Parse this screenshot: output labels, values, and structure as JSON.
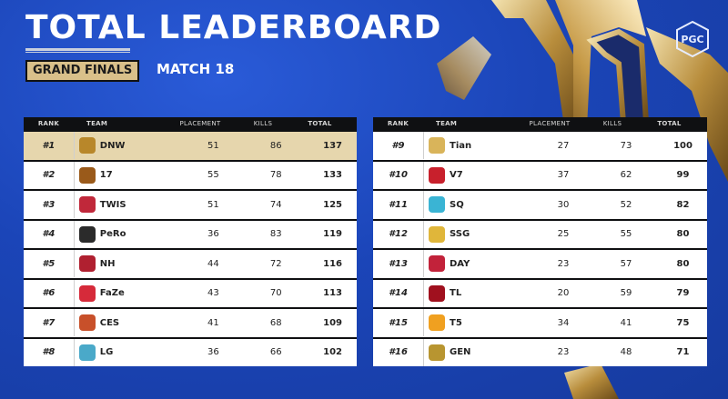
{
  "header": {
    "title": "TOTAL LEADERBOARD",
    "stage": "GRAND FINALS",
    "match": "MATCH 18",
    "logo_text": "PGC"
  },
  "columns": {
    "rank": "RANK",
    "team": "TEAM",
    "placement": "PLACEMENT",
    "kills": "KILLS",
    "total": "TOTAL"
  },
  "left_rows": [
    {
      "rank": "#1",
      "team": "DNW",
      "placement": "51",
      "kills": "86",
      "total": "137",
      "logo_color": "#b8872a",
      "icon": "dnw-logo-icon"
    },
    {
      "rank": "#2",
      "team": "17",
      "placement": "55",
      "kills": "78",
      "total": "133",
      "logo_color": "#9a5a1a",
      "icon": "17-logo-icon"
    },
    {
      "rank": "#3",
      "team": "TWIS",
      "placement": "51",
      "kills": "74",
      "total": "125",
      "logo_color": "#c0283a",
      "icon": "twis-logo-icon"
    },
    {
      "rank": "#4",
      "team": "PeRo",
      "placement": "36",
      "kills": "83",
      "total": "119",
      "logo_color": "#2b2b2b",
      "icon": "pero-logo-icon"
    },
    {
      "rank": "#5",
      "team": "NH",
      "placement": "44",
      "kills": "72",
      "total": "116",
      "logo_color": "#b02030",
      "icon": "nh-logo-icon"
    },
    {
      "rank": "#6",
      "team": "FaZe",
      "placement": "43",
      "kills": "70",
      "total": "113",
      "logo_color": "#d62a3a",
      "icon": "faze-logo-icon"
    },
    {
      "rank": "#7",
      "team": "CES",
      "placement": "41",
      "kills": "68",
      "total": "109",
      "logo_color": "#c8502a",
      "icon": "ces-logo-icon"
    },
    {
      "rank": "#8",
      "team": "LG",
      "placement": "36",
      "kills": "66",
      "total": "102",
      "logo_color": "#4aa9c9",
      "icon": "lg-logo-icon"
    }
  ],
  "right_rows": [
    {
      "rank": "#9",
      "team": "Tian",
      "placement": "27",
      "kills": "73",
      "total": "100",
      "logo_color": "#d9b45a",
      "icon": "tian-logo-icon"
    },
    {
      "rank": "#10",
      "team": "V7",
      "placement": "37",
      "kills": "62",
      "total": "99",
      "logo_color": "#c8202c",
      "icon": "v7-logo-icon"
    },
    {
      "rank": "#11",
      "team": "SQ",
      "placement": "30",
      "kills": "52",
      "total": "82",
      "logo_color": "#3ab4d4",
      "icon": "sq-logo-icon"
    },
    {
      "rank": "#12",
      "team": "SSG",
      "placement": "25",
      "kills": "55",
      "total": "80",
      "logo_color": "#e0b63a",
      "icon": "ssg-logo-icon"
    },
    {
      "rank": "#13",
      "team": "DAY",
      "placement": "23",
      "kills": "57",
      "total": "80",
      "logo_color": "#c2223a",
      "icon": "day-logo-icon"
    },
    {
      "rank": "#14",
      "team": "TL",
      "placement": "20",
      "kills": "59",
      "total": "79",
      "logo_color": "#a0101e",
      "icon": "tl-logo-icon"
    },
    {
      "rank": "#15",
      "team": "T5",
      "placement": "34",
      "kills": "41",
      "total": "75",
      "logo_color": "#f0a020",
      "icon": "t5-logo-icon"
    },
    {
      "rank": "#16",
      "team": "GEN",
      "placement": "23",
      "kills": "48",
      "total": "71",
      "logo_color": "#b89530",
      "icon": "gen-logo-icon"
    }
  ]
}
